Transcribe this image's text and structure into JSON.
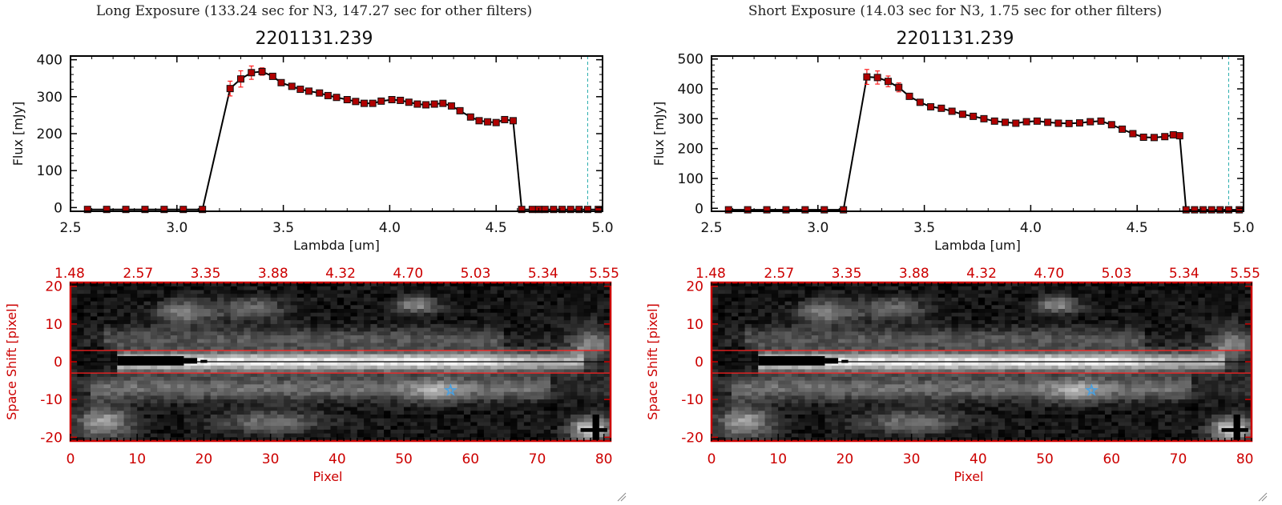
{
  "panels": [
    {
      "subtitle": "Long Exposure (133.24 sec for N3, 147.27 sec for other filters)",
      "title": "2201131.239"
    },
    {
      "subtitle": "Short Exposure (14.03 sec for N3, 1.75 sec for other filters)",
      "title": "2201131.239"
    }
  ],
  "colors": {
    "axis_red": "#cc0000",
    "errorbar": "#ff2020",
    "marker_fill": "#b00000",
    "line": "#000000",
    "cyan_dash": "#22aaaa",
    "star": "#4aa0e0"
  },
  "chart_data": [
    {
      "type": "line",
      "xlabel": "Lambda [um]",
      "ylabel": "Flux [mJy]",
      "xlim": [
        2.5,
        5.0
      ],
      "ylim": [
        -10,
        410
      ],
      "xticks": [
        "2.5",
        "3.0",
        "3.5",
        "4.0",
        "4.5",
        "5.0"
      ],
      "yticks": [
        "0",
        "100",
        "200",
        "300",
        "400"
      ],
      "x": [
        2.58,
        2.67,
        2.76,
        2.85,
        2.94,
        3.03,
        3.12,
        3.25,
        3.3,
        3.35,
        3.4,
        3.45,
        3.49,
        3.54,
        3.58,
        3.62,
        3.67,
        3.71,
        3.75,
        3.8,
        3.84,
        3.88,
        3.92,
        3.96,
        4.01,
        4.05,
        4.09,
        4.13,
        4.17,
        4.21,
        4.25,
        4.29,
        4.33,
        4.38,
        4.42,
        4.46,
        4.5,
        4.54,
        4.58,
        4.62,
        4.67,
        4.7,
        4.73,
        4.77,
        4.81,
        4.85,
        4.89,
        4.93,
        4.98
      ],
      "y": [
        -5,
        -5,
        -5,
        -5,
        -5,
        -5,
        -5,
        322,
        348,
        365,
        368,
        355,
        338,
        328,
        320,
        315,
        310,
        303,
        298,
        292,
        287,
        282,
        282,
        288,
        292,
        290,
        285,
        280,
        278,
        280,
        282,
        275,
        262,
        245,
        235,
        232,
        230,
        238,
        235,
        -5,
        -5,
        -5,
        -5,
        -5,
        -5,
        -5,
        -5,
        -5,
        -5
      ],
      "err": [
        0,
        0,
        0,
        0,
        0,
        0,
        0,
        20,
        22,
        18,
        10,
        0,
        0,
        0,
        0,
        0,
        0,
        0,
        0,
        0,
        0,
        0,
        0,
        0,
        0,
        0,
        0,
        0,
        0,
        0,
        0,
        0,
        0,
        0,
        0,
        0,
        0,
        0,
        0,
        0,
        0,
        0,
        0,
        0,
        0,
        0,
        0,
        0,
        0
      ],
      "cyan_line_x": 4.93
    },
    {
      "type": "line",
      "xlabel": "Lambda [um]",
      "ylabel": "Flux [mJy]",
      "xlim": [
        2.5,
        5.0
      ],
      "ylim": [
        -10,
        510
      ],
      "xticks": [
        "2.5",
        "3.0",
        "3.5",
        "4.0",
        "4.5",
        "5.0"
      ],
      "yticks": [
        "0",
        "100",
        "200",
        "300",
        "400",
        "500"
      ],
      "x": [
        2.58,
        2.67,
        2.76,
        2.85,
        2.94,
        3.03,
        3.12,
        3.23,
        3.28,
        3.33,
        3.38,
        3.43,
        3.48,
        3.53,
        3.58,
        3.63,
        3.68,
        3.73,
        3.78,
        3.83,
        3.88,
        3.93,
        3.98,
        4.03,
        4.08,
        4.13,
        4.18,
        4.23,
        4.28,
        4.33,
        4.38,
        4.43,
        4.48,
        4.53,
        4.58,
        4.63,
        4.67,
        4.7,
        4.73,
        4.77,
        4.81,
        4.85,
        4.89,
        4.93,
        4.98
      ],
      "y": [
        -5,
        -5,
        -5,
        -5,
        -5,
        -5,
        -5,
        440,
        438,
        425,
        405,
        375,
        355,
        340,
        335,
        325,
        315,
        308,
        300,
        292,
        288,
        285,
        290,
        292,
        288,
        285,
        284,
        286,
        290,
        292,
        280,
        265,
        250,
        238,
        237,
        240,
        246,
        243,
        -5,
        -5,
        -5,
        -5,
        -5,
        -5,
        -5
      ],
      "err": [
        0,
        0,
        0,
        0,
        0,
        0,
        0,
        25,
        22,
        18,
        15,
        0,
        0,
        0,
        0,
        0,
        0,
        0,
        0,
        0,
        0,
        0,
        0,
        0,
        0,
        0,
        0,
        0,
        0,
        0,
        0,
        0,
        0,
        0,
        0,
        0,
        0,
        0,
        0,
        0,
        0,
        0,
        0,
        0,
        0
      ],
      "cyan_line_x": 4.93
    },
    {
      "type": "heatmap",
      "xlabel": "Pixel",
      "ylabel": "Space Shift [pixel]",
      "xlim": [
        0,
        81
      ],
      "ylim": [
        -21,
        21
      ],
      "xticks": [
        "0",
        "10",
        "20",
        "30",
        "40",
        "50",
        "60",
        "70",
        "80"
      ],
      "yticks": [
        "-20",
        "-10",
        "0",
        "10",
        "20"
      ],
      "top_ticks": [
        "1.48",
        "2.57",
        "3.35",
        "3.88",
        "4.32",
        "4.70",
        "5.03",
        "5.34",
        "5.55"
      ],
      "aperture": [
        -3,
        3
      ],
      "star_marker": [
        57,
        -7.5
      ]
    },
    {
      "type": "heatmap",
      "xlabel": "Pixel",
      "ylabel": "Space Shift [pixel]",
      "xlim": [
        0,
        81
      ],
      "ylim": [
        -21,
        21
      ],
      "xticks": [
        "0",
        "10",
        "20",
        "30",
        "40",
        "50",
        "60",
        "70",
        "80"
      ],
      "yticks": [
        "-20",
        "-10",
        "0",
        "10",
        "20"
      ],
      "top_ticks": [
        "1.48",
        "2.57",
        "3.35",
        "3.88",
        "4.32",
        "4.70",
        "5.03",
        "5.34",
        "5.55"
      ],
      "aperture": [
        -3,
        3
      ],
      "star_marker": [
        57,
        -7.5
      ]
    }
  ]
}
